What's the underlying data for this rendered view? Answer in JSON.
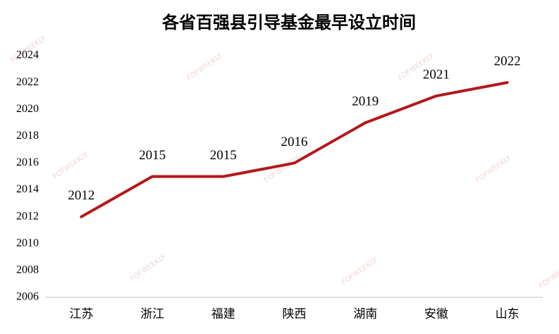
{
  "chart_data": {
    "type": "line",
    "title": "各省百强县引导基金最早设立时间",
    "watermark": "FOFWEEKLY",
    "categories": [
      "江苏",
      "浙江",
      "福建",
      "陕西",
      "湖南",
      "安徽",
      "山东"
    ],
    "values": [
      2012,
      2015,
      2015,
      2016,
      2019,
      2021,
      2022
    ],
    "color": "#b3181c",
    "ylim": [
      2006,
      2024
    ],
    "yticks": [
      2006,
      2008,
      2010,
      2012,
      2014,
      2016,
      2018,
      2020,
      2022,
      2024
    ],
    "grid": false
  }
}
